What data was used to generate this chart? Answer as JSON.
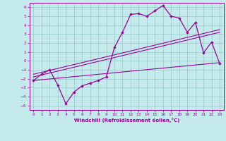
{
  "xlabel": "Windchill (Refroidissement éolien,°C)",
  "xlim": [
    -0.5,
    23.5
  ],
  "ylim": [
    -5.5,
    6.5
  ],
  "yticks": [
    -5,
    -4,
    -3,
    -2,
    -1,
    0,
    1,
    2,
    3,
    4,
    5,
    6
  ],
  "xticks": [
    0,
    1,
    2,
    3,
    4,
    5,
    6,
    7,
    8,
    9,
    10,
    11,
    12,
    13,
    14,
    15,
    16,
    17,
    18,
    19,
    20,
    21,
    22,
    23
  ],
  "bg_color": "#c5eaeb",
  "grid_color": "#9dcece",
  "line_color": "#990099",
  "main_x": [
    0,
    1,
    2,
    3,
    4,
    5,
    6,
    7,
    8,
    9,
    10,
    11,
    12,
    13,
    14,
    15,
    16,
    17,
    18,
    19,
    20,
    21,
    22,
    23
  ],
  "main_y": [
    -2.2,
    -1.5,
    -1.0,
    -2.7,
    -4.8,
    -3.5,
    -2.8,
    -2.5,
    -2.2,
    -1.8,
    1.5,
    3.2,
    5.2,
    5.3,
    5.0,
    5.6,
    6.2,
    5.0,
    4.8,
    3.2,
    4.3,
    0.9,
    2.1,
    -0.3
  ],
  "line2_x": [
    0,
    23
  ],
  "line2_y": [
    -1.8,
    3.2
  ],
  "line3_x": [
    0,
    23
  ],
  "line3_y": [
    -1.5,
    3.5
  ],
  "line4_x": [
    0,
    23
  ],
  "line4_y": [
    -2.2,
    -0.2
  ]
}
